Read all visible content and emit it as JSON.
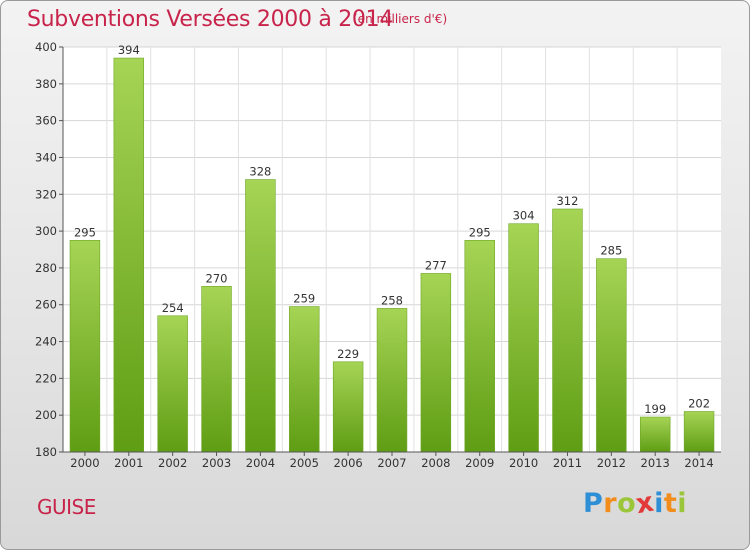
{
  "header": {
    "title": "Subventions Versées 2000 à 2014",
    "subtitle": "(en milliers d'€)"
  },
  "footer": {
    "town": "GUISE",
    "logo_letters": [
      "P",
      "r",
      "o",
      "x",
      "i",
      "t",
      "i"
    ],
    "logo_colors": [
      "#2e8fd6",
      "#f28c1a",
      "#9cc63a",
      "#e23a3a",
      "#2e8fd6",
      "#f28c1a",
      "#9cc63a"
    ]
  },
  "chart_data": {
    "type": "bar",
    "categories": [
      "2000",
      "2001",
      "2002",
      "2003",
      "2004",
      "2005",
      "2006",
      "2007",
      "2008",
      "2009",
      "2010",
      "2011",
      "2012",
      "2013",
      "2014"
    ],
    "values": [
      295,
      394,
      254,
      270,
      328,
      259,
      229,
      258,
      277,
      295,
      304,
      312,
      285,
      199,
      202
    ],
    "ylim": [
      180,
      400
    ],
    "yticks": [
      180,
      200,
      220,
      240,
      260,
      280,
      300,
      320,
      340,
      360,
      380,
      400
    ],
    "grid": true,
    "bar_color_top": "#a6d455",
    "bar_color_bottom": "#5f9d14",
    "title": "Subventions Versées 2000 à 2014",
    "xlabel": "",
    "ylabel": ""
  }
}
